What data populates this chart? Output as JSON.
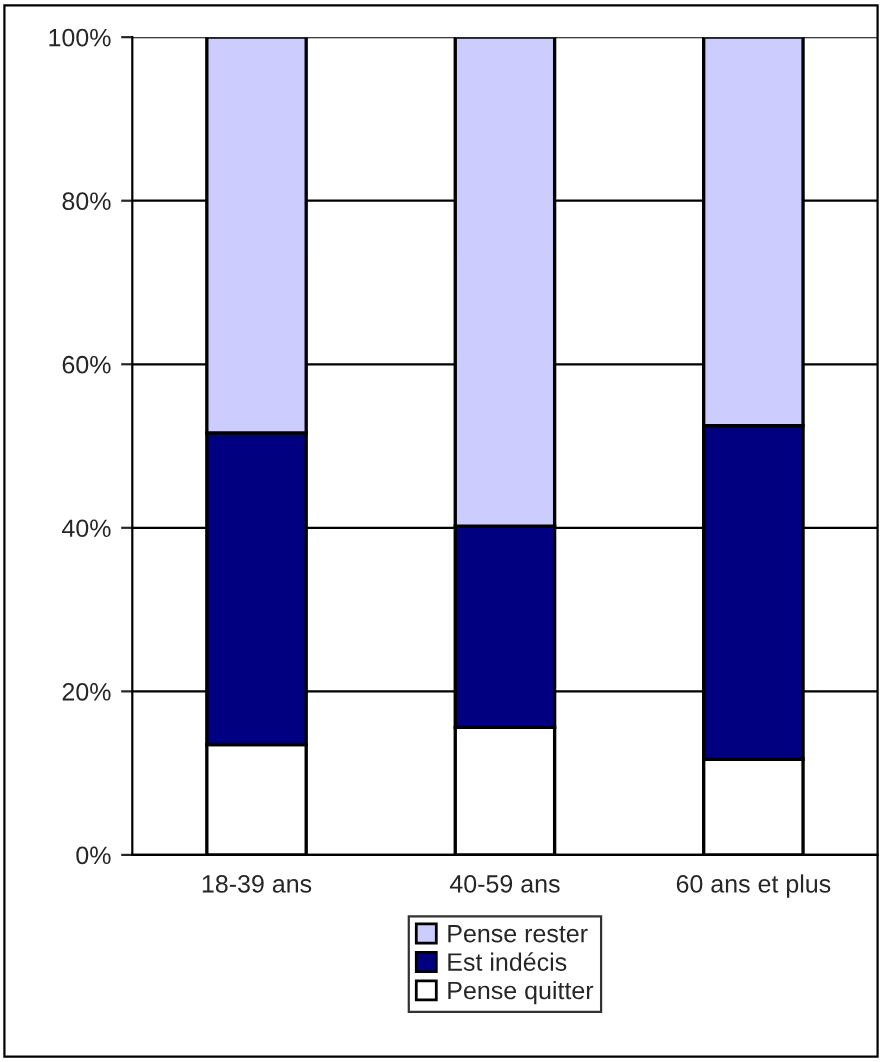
{
  "chart_data": {
    "type": "bar",
    "stacked": true,
    "categories": [
      "18-39 ans",
      "40-59 ans",
      "60 ans et plus"
    ],
    "series": [
      {
        "name": "Pense quitter",
        "color": "#ffffff",
        "values": [
          13.5,
          15.6,
          11.7
        ]
      },
      {
        "name": "Est indécis",
        "color": "#000080",
        "values": [
          38.1,
          24.6,
          40.8
        ]
      },
      {
        "name": "Pense rester",
        "color": "#ccccff",
        "values": [
          48.4,
          59.8,
          47.5
        ]
      }
    ],
    "ylim": [
      0,
      100
    ],
    "yticks": [
      {
        "value": 0,
        "label": "0%"
      },
      {
        "value": 20,
        "label": "20%"
      },
      {
        "value": 40,
        "label": "40%"
      },
      {
        "value": 60,
        "label": "60%"
      },
      {
        "value": 80,
        "label": "80%"
      },
      {
        "value": 100,
        "label": "100%"
      }
    ],
    "grid": "y",
    "legend": "bottom"
  }
}
